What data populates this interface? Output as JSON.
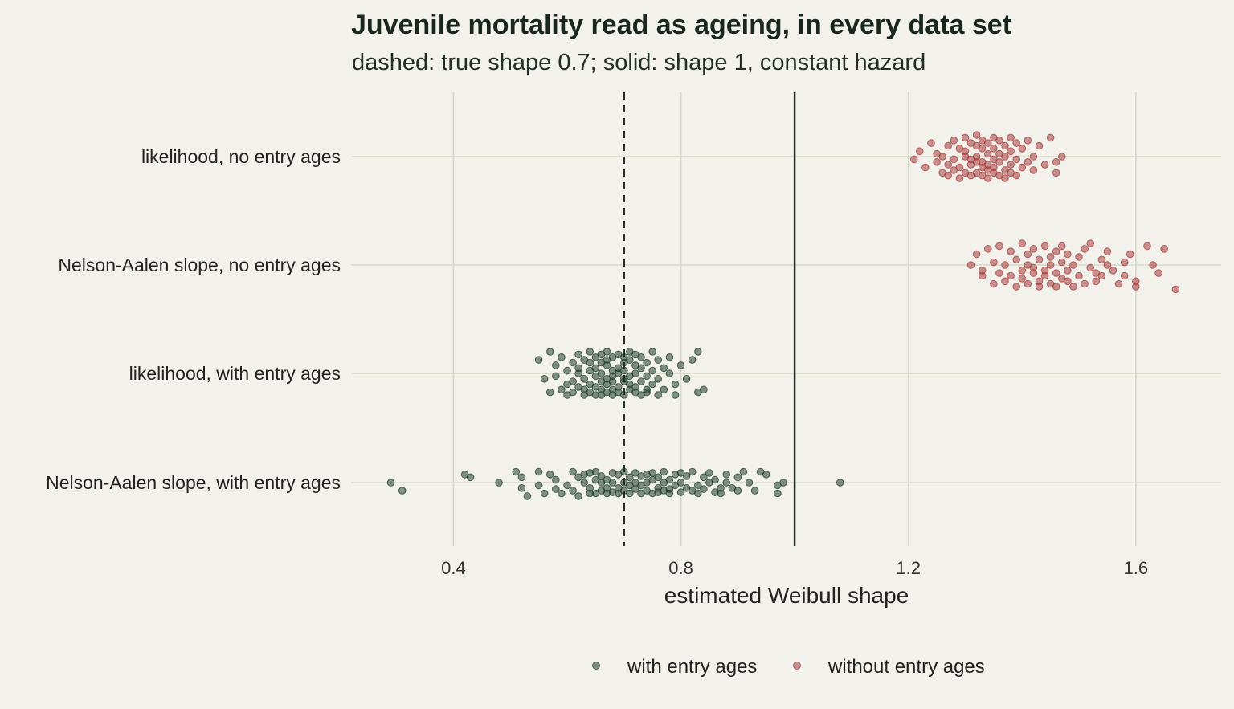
{
  "chart_data": {
    "type": "scatter",
    "title": "Juvenile mortality read as ageing, in every data set",
    "subtitle": "dashed: true shape 0.7; solid: shape 1, constant hazard",
    "xlabel": "estimated Weibull shape",
    "ylabel": "",
    "xlim": [
      0.22,
      1.75
    ],
    "x_ticks": [
      0.4,
      0.8,
      1.2,
      1.6
    ],
    "x_tick_labels": [
      "0.4",
      "0.8",
      "1.2",
      "1.6"
    ],
    "categories": [
      "likelihood, no entry ages",
      "Nelson-Aalen slope, no entry ages",
      "likelihood, with entry ages",
      "Nelson-Aalen slope, with entry ages"
    ],
    "reference_lines": [
      {
        "x": 0.7,
        "style": "dashed"
      },
      {
        "x": 1.0,
        "style": "solid"
      }
    ],
    "grid": true,
    "legend_position": "bottom",
    "series": [
      {
        "name": "with entry ages",
        "color": "#1f3d2c",
        "groups": [
          {
            "category": "likelihood, with entry ages",
            "x": [
              0.55,
              0.56,
              0.57,
              0.57,
              0.58,
              0.58,
              0.59,
              0.59,
              0.6,
              0.6,
              0.6,
              0.61,
              0.61,
              0.61,
              0.62,
              0.62,
              0.62,
              0.62,
              0.63,
              0.63,
              0.63,
              0.63,
              0.64,
              0.64,
              0.64,
              0.64,
              0.64,
              0.65,
              0.65,
              0.65,
              0.65,
              0.65,
              0.66,
              0.66,
              0.66,
              0.66,
              0.66,
              0.66,
              0.67,
              0.67,
              0.67,
              0.67,
              0.67,
              0.67,
              0.68,
              0.68,
              0.68,
              0.68,
              0.68,
              0.68,
              0.69,
              0.69,
              0.69,
              0.69,
              0.69,
              0.7,
              0.7,
              0.7,
              0.7,
              0.7,
              0.7,
              0.71,
              0.71,
              0.71,
              0.71,
              0.71,
              0.72,
              0.72,
              0.72,
              0.72,
              0.72,
              0.73,
              0.73,
              0.73,
              0.73,
              0.74,
              0.74,
              0.74,
              0.74,
              0.75,
              0.75,
              0.75,
              0.76,
              0.76,
              0.76,
              0.77,
              0.77,
              0.78,
              0.78,
              0.79,
              0.79,
              0.8,
              0.81,
              0.82,
              0.83,
              0.83,
              0.84
            ],
            "jitter": [
              -0.25,
              0.1,
              0.35,
              -0.4,
              0.05,
              -0.15,
              0.3,
              -0.3,
              0.2,
              -0.05,
              0.4,
              -0.2,
              0.15,
              0.35,
              -0.35,
              0.0,
              0.25,
              -0.1,
              0.4,
              -0.25,
              0.1,
              0.3,
              -0.4,
              -0.05,
              0.2,
              0.35,
              -0.2,
              0.05,
              -0.3,
              0.25,
              0.4,
              -0.1,
              0.15,
              -0.35,
              0.3,
              0.0,
              -0.2,
              0.4,
              -0.15,
              0.2,
              0.35,
              -0.4,
              0.1,
              -0.25,
              0.3,
              -0.05,
              0.15,
              -0.3,
              0.4,
              0.05,
              -0.1,
              0.25,
              -0.35,
              0.35,
              0.0,
              -0.2,
              0.15,
              0.4,
              -0.3,
              0.1,
              -0.05,
              0.3,
              -0.25,
              0.2,
              -0.4,
              0.05,
              0.35,
              -0.15,
              0.25,
              0.0,
              -0.35,
              0.4,
              -0.1,
              0.15,
              -0.3,
              0.3,
              0.05,
              -0.2,
              0.35,
              -0.05,
              0.2,
              -0.4,
              0.1,
              0.4,
              -0.25,
              0.3,
              -0.1,
              0.0,
              -0.3,
              0.2,
              0.4,
              -0.15,
              0.1,
              -0.25,
              -0.4,
              0.35,
              0.3
            ]
          },
          {
            "category": "Nelson-Aalen slope, with entry ages",
            "x": [
              0.29,
              0.31,
              0.42,
              0.43,
              0.48,
              0.51,
              0.52,
              0.52,
              0.53,
              0.55,
              0.55,
              0.56,
              0.57,
              0.58,
              0.58,
              0.59,
              0.6,
              0.61,
              0.61,
              0.62,
              0.62,
              0.63,
              0.63,
              0.64,
              0.64,
              0.64,
              0.65,
              0.65,
              0.65,
              0.66,
              0.66,
              0.66,
              0.67,
              0.67,
              0.67,
              0.68,
              0.68,
              0.68,
              0.69,
              0.69,
              0.69,
              0.7,
              0.7,
              0.7,
              0.71,
              0.71,
              0.71,
              0.72,
              0.72,
              0.72,
              0.73,
              0.73,
              0.73,
              0.74,
              0.74,
              0.74,
              0.75,
              0.75,
              0.75,
              0.76,
              0.76,
              0.76,
              0.77,
              0.77,
              0.77,
              0.78,
              0.78,
              0.78,
              0.79,
              0.79,
              0.8,
              0.8,
              0.8,
              0.81,
              0.81,
              0.82,
              0.82,
              0.83,
              0.83,
              0.84,
              0.84,
              0.85,
              0.85,
              0.86,
              0.86,
              0.87,
              0.87,
              0.88,
              0.88,
              0.89,
              0.9,
              0.9,
              0.91,
              0.92,
              0.93,
              0.94,
              0.95,
              0.97,
              0.97,
              0.98,
              1.08
            ],
            "jitter": [
              0.0,
              0.15,
              -0.15,
              -0.1,
              0.0,
              -0.2,
              0.1,
              -0.1,
              0.25,
              -0.2,
              0.05,
              0.2,
              -0.15,
              0.12,
              -0.05,
              0.2,
              0.05,
              -0.2,
              0.15,
              0.25,
              -0.1,
              -0.15,
              0.0,
              0.2,
              -0.18,
              0.1,
              -0.05,
              0.2,
              -0.2,
              0.15,
              0.0,
              -0.12,
              0.2,
              -0.05,
              0.1,
              -0.18,
              0.18,
              0.0,
              0.1,
              -0.15,
              0.2,
              0.0,
              -0.2,
              0.15,
              0.05,
              -0.1,
              0.2,
              -0.18,
              0.12,
              0.0,
              0.2,
              -0.12,
              0.05,
              -0.15,
              0.15,
              0.0,
              0.2,
              -0.05,
              -0.18,
              0.1,
              0.18,
              -0.1,
              0.0,
              0.15,
              -0.2,
              0.12,
              -0.05,
              0.2,
              -0.15,
              0.05,
              0.18,
              0.0,
              -0.18,
              0.1,
              -0.12,
              0.15,
              -0.2,
              0.05,
              0.2,
              -0.1,
              0.12,
              0.0,
              -0.18,
              0.18,
              -0.05,
              0.1,
              0.2,
              -0.15,
              0.0,
              0.1,
              -0.1,
              0.15,
              -0.2,
              0.0,
              0.15,
              -0.2,
              -0.15,
              0.2,
              0.05,
              0.0,
              0.0
            ]
          }
        ]
      },
      {
        "name": "without entry ages",
        "color": "#a63c3c",
        "groups": [
          {
            "category": "likelihood, no entry ages",
            "x": [
              1.21,
              1.22,
              1.23,
              1.24,
              1.25,
              1.25,
              1.26,
              1.26,
              1.27,
              1.27,
              1.27,
              1.28,
              1.28,
              1.28,
              1.29,
              1.29,
              1.29,
              1.3,
              1.3,
              1.3,
              1.3,
              1.31,
              1.31,
              1.31,
              1.31,
              1.32,
              1.32,
              1.32,
              1.32,
              1.32,
              1.33,
              1.33,
              1.33,
              1.33,
              1.33,
              1.34,
              1.34,
              1.34,
              1.34,
              1.34,
              1.35,
              1.35,
              1.35,
              1.35,
              1.35,
              1.36,
              1.36,
              1.36,
              1.36,
              1.37,
              1.37,
              1.37,
              1.37,
              1.38,
              1.38,
              1.38,
              1.38,
              1.39,
              1.39,
              1.39,
              1.4,
              1.4,
              1.41,
              1.41,
              1.42,
              1.42,
              1.43,
              1.44,
              1.45,
              1.46,
              1.46,
              1.47
            ],
            "jitter": [
              0.05,
              -0.1,
              0.2,
              -0.25,
              0.1,
              -0.05,
              0.3,
              0.0,
              -0.2,
              0.15,
              0.35,
              -0.3,
              0.05,
              0.25,
              -0.15,
              0.2,
              0.4,
              -0.35,
              0.0,
              0.3,
              -0.1,
              0.15,
              -0.25,
              0.35,
              0.05,
              -0.2,
              0.1,
              0.3,
              -0.4,
              0.0,
              0.2,
              -0.15,
              0.35,
              -0.3,
              0.1,
              -0.05,
              0.25,
              -0.25,
              0.4,
              0.15,
              -0.35,
              0.05,
              0.3,
              -0.15,
              0.2,
              -0.3,
              0.1,
              0.35,
              -0.05,
              0.25,
              -0.2,
              0.0,
              0.4,
              -0.35,
              0.15,
              0.3,
              -0.1,
              0.05,
              -0.25,
              0.35,
              0.2,
              -0.15,
              0.1,
              -0.3,
              0.25,
              0.0,
              -0.2,
              0.15,
              -0.35,
              0.1,
              0.3,
              0.0
            ]
          },
          {
            "category": "Nelson-Aalen slope, no entry ages",
            "x": [
              1.31,
              1.32,
              1.33,
              1.33,
              1.34,
              1.35,
              1.35,
              1.36,
              1.36,
              1.37,
              1.37,
              1.38,
              1.38,
              1.39,
              1.39,
              1.4,
              1.4,
              1.4,
              1.41,
              1.41,
              1.41,
              1.42,
              1.42,
              1.42,
              1.43,
              1.43,
              1.43,
              1.44,
              1.44,
              1.44,
              1.45,
              1.45,
              1.45,
              1.46,
              1.46,
              1.46,
              1.47,
              1.47,
              1.47,
              1.48,
              1.48,
              1.48,
              1.49,
              1.49,
              1.5,
              1.5,
              1.51,
              1.51,
              1.52,
              1.52,
              1.53,
              1.53,
              1.54,
              1.54,
              1.55,
              1.55,
              1.56,
              1.57,
              1.58,
              1.58,
              1.59,
              1.6,
              1.6,
              1.62,
              1.63,
              1.64,
              1.65,
              1.67
            ],
            "jitter": [
              0.0,
              -0.2,
              0.2,
              0.1,
              -0.3,
              0.35,
              -0.05,
              0.15,
              -0.35,
              0.3,
              0.0,
              -0.25,
              0.2,
              0.4,
              -0.1,
              0.1,
              -0.4,
              0.25,
              0.0,
              -0.2,
              0.35,
              0.15,
              -0.3,
              0.05,
              -0.1,
              0.3,
              0.4,
              -0.35,
              0.1,
              0.2,
              -0.15,
              0.35,
              0.0,
              -0.25,
              0.15,
              0.4,
              -0.05,
              0.25,
              -0.35,
              0.1,
              0.3,
              -0.2,
              0.0,
              0.4,
              -0.15,
              0.2,
              -0.3,
              0.35,
              0.05,
              -0.4,
              0.15,
              0.3,
              -0.1,
              0.2,
              0.0,
              -0.25,
              0.1,
              0.35,
              -0.05,
              0.2,
              -0.2,
              0.4,
              0.3,
              -0.35,
              0.0,
              0.15,
              -0.3,
              0.45
            ]
          }
        ]
      }
    ]
  }
}
